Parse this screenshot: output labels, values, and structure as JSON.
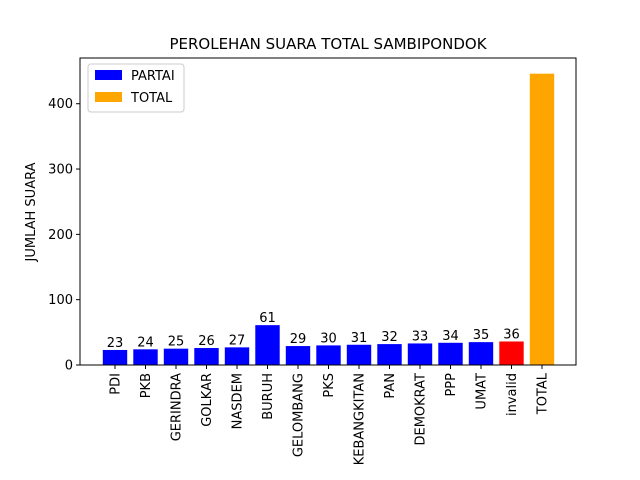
{
  "chart_data": {
    "type": "bar",
    "title": "PEROLEHAN SUARA TOTAL SAMBIPONDOK",
    "xlabel": "",
    "ylabel": "JUMLAH SUARA",
    "ylim": [
      0,
      470
    ],
    "yticks": [
      0,
      100,
      200,
      300,
      400
    ],
    "grid": false,
    "legend_position": "top-left",
    "categories": [
      "PDI",
      "PKB",
      "GERINDRA",
      "GOLKAR",
      "NASDEM",
      "BURUH",
      "GELOMBANG",
      "PKS",
      "KEBANGKITAN",
      "PAN",
      "DEMOKRAT",
      "PPP",
      "UMAT",
      "invalid",
      "TOTAL"
    ],
    "values": [
      23,
      24,
      25,
      26,
      27,
      61,
      29,
      30,
      31,
      32,
      33,
      34,
      35,
      36,
      446
    ],
    "data_labels": [
      "23",
      "24",
      "25",
      "26",
      "27",
      "61",
      "29",
      "30",
      "31",
      "32",
      "33",
      "34",
      "35",
      "36",
      ""
    ],
    "bar_colors": [
      "#0000ff",
      "#0000ff",
      "#0000ff",
      "#0000ff",
      "#0000ff",
      "#0000ff",
      "#0000ff",
      "#0000ff",
      "#0000ff",
      "#0000ff",
      "#0000ff",
      "#0000ff",
      "#0000ff",
      "#ff0000",
      "#ffa500"
    ],
    "legend": [
      {
        "label": "PARTAI",
        "color": "#0000ff"
      },
      {
        "label": "TOTAL",
        "color": "#ffa500"
      }
    ]
  }
}
